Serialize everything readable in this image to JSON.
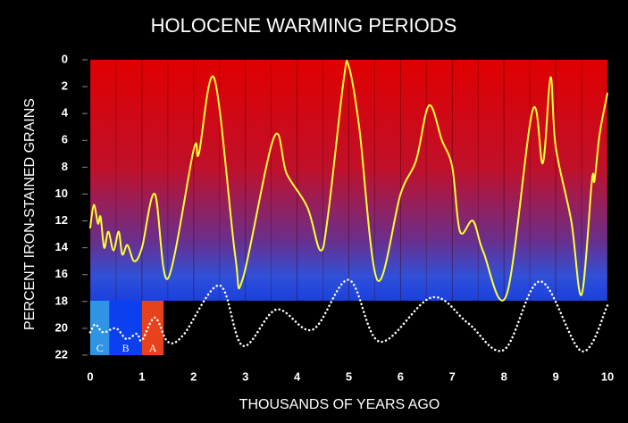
{
  "chart_data": {
    "type": "line",
    "title": "HOLOCENE WARMING PERIODS",
    "x_label": "THOUSANDS OF YEARS AGO",
    "y_label": "PERCENT IRON-STAINED GRAINS",
    "xlim": [
      0,
      10
    ],
    "xticks": [
      0,
      1,
      2,
      3,
      4,
      5,
      6,
      7,
      8,
      9,
      10
    ],
    "ylim": [
      0,
      22
    ],
    "yticks": [
      0,
      2,
      4,
      6,
      8,
      10,
      12,
      14,
      16,
      18,
      20,
      22
    ],
    "y_inverted": true,
    "grid": true,
    "series": [
      {
        "color": "#ffff33",
        "style": "solid",
        "x": [
          0,
          0.07,
          0.15,
          0.2,
          0.27,
          0.35,
          0.45,
          0.55,
          0.62,
          0.72,
          0.85,
          1.0,
          1.25,
          1.5,
          2.0,
          2.1,
          2.4,
          2.8,
          2.95,
          3.55,
          3.8,
          4.2,
          4.45,
          4.6,
          4.9,
          5.0,
          5.2,
          5.55,
          6.0,
          6.3,
          6.55,
          6.8,
          7.0,
          7.15,
          7.4,
          7.6,
          8.05,
          8.55,
          8.75,
          8.9,
          9.0,
          9.3,
          9.5,
          9.7,
          9.75,
          9.85,
          10.0
        ],
        "values": [
          12.5,
          10.8,
          12.2,
          11.7,
          14.0,
          12.8,
          14.2,
          12.8,
          14.5,
          13.8,
          15.0,
          14.0,
          10.0,
          16.3,
          6.7,
          7.0,
          1.4,
          14.5,
          16.3,
          5.8,
          8.5,
          11.0,
          14.2,
          11.5,
          1.5,
          0.5,
          5.0,
          16.4,
          10.0,
          7.5,
          3.4,
          6.0,
          8.0,
          12.8,
          12.0,
          14.3,
          17.5,
          3.8,
          7.7,
          1.3,
          6.5,
          12.0,
          17.5,
          9.0,
          9.0,
          5.5,
          2.5
        ]
      },
      {
        "color": "#ffffff",
        "style": "dotted",
        "x": [
          0,
          0.1,
          0.25,
          0.5,
          0.7,
          0.9,
          1.0,
          1.25,
          1.5,
          1.8,
          2.5,
          2.95,
          3.6,
          4.3,
          5.0,
          5.6,
          6.6,
          7.3,
          8.0,
          8.7,
          9.5,
          10.0
        ],
        "values": [
          20.3,
          19.7,
          20.3,
          20.0,
          20.8,
          20.4,
          20.9,
          19.2,
          21.0,
          20.5,
          16.8,
          21.3,
          18.6,
          20.1,
          16.4,
          21.0,
          17.7,
          19.6,
          21.6,
          16.5,
          21.7,
          18.3
        ]
      }
    ],
    "regions": [
      {
        "label": "C",
        "x": [
          0,
          0.37
        ],
        "color": "#2f93e6"
      },
      {
        "label": "B",
        "x": [
          0.37,
          1.0
        ],
        "color": "#0b3ff0"
      },
      {
        "label": "A",
        "x": [
          1.0,
          1.42
        ],
        "color": "#e8421c"
      }
    ]
  }
}
